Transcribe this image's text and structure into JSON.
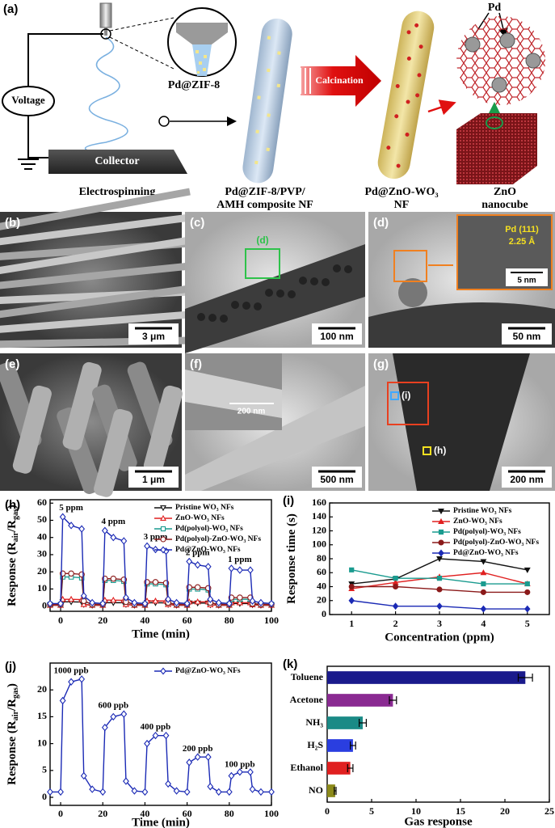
{
  "panel_a": {
    "label": "(a)",
    "voltage": "Voltage",
    "zif_label": "Pd@ZIF-8",
    "collector": "Collector",
    "calcination": "Calcination",
    "pd": "Pd",
    "captions": [
      [
        "Electrospinning"
      ],
      [
        "Pd@ZIF-8/PVP/",
        "AMH composite NF"
      ],
      [
        "Pd@ZnO-WO₃",
        "NF"
      ],
      [
        "ZnO",
        "nanocube"
      ]
    ]
  },
  "micrographs": [
    {
      "label": "(b)",
      "scale": "3 μm"
    },
    {
      "label": "(c)",
      "scale": "100 nm",
      "marker": "(d)"
    },
    {
      "label": "(d)",
      "scale": "50 nm",
      "inset_text": [
        "Pd (111)",
        "2.25 Å"
      ],
      "inset_scale": "5 nm"
    },
    {
      "label": "(e)",
      "scale": "1 μm"
    },
    {
      "label": "(f)",
      "scale": "500 nm",
      "inset_scale": "200 nm"
    },
    {
      "label": "(g)",
      "scale": "200 nm",
      "markers": [
        "(i)",
        "(h)"
      ]
    }
  ],
  "chart_data": [
    {
      "type": "line",
      "panel": "(h)",
      "x_label": "Time (min)",
      "y_label": [
        "Response (R",
        "air",
        "/R",
        "gas",
        ")"
      ],
      "x": [
        -5,
        0,
        1,
        5,
        10,
        11,
        15,
        20,
        21,
        25,
        30,
        31,
        35,
        40,
        41,
        45,
        50,
        51,
        55,
        60,
        61,
        65,
        70,
        71,
        75,
        80,
        81,
        85,
        90,
        91,
        95,
        100
      ],
      "xlim": [
        -5,
        100
      ],
      "xticks": [
        0,
        20,
        40,
        60,
        80,
        100
      ],
      "ylim": [
        -3,
        62
      ],
      "yticks": [
        0,
        10,
        20,
        30,
        40,
        50,
        60
      ],
      "open_markers": true,
      "legend": "upper right",
      "series": [
        {
          "name": "Pristine WO₃ NFs",
          "color": "#111111",
          "marker": "triangle-down",
          "values": [
            0.5,
            0.5,
            2.5,
            2.5,
            2.4,
            1,
            0.5,
            0.5,
            2,
            2,
            2,
            1,
            0.5,
            0.5,
            2,
            2,
            1.9,
            1,
            0.5,
            0.5,
            1.8,
            1.8,
            1.7,
            0.8,
            0.5,
            0.5,
            1.5,
            1.5,
            1.5,
            0.8,
            0.5,
            0.5
          ]
        },
        {
          "name": "ZnO-WO₃ NFs",
          "color": "#e02020",
          "marker": "triangle-up",
          "values": [
            0.5,
            0.5,
            4,
            4,
            3.8,
            1,
            0.5,
            0.5,
            3.5,
            3.5,
            3.4,
            1,
            0.5,
            0.5,
            3,
            3,
            3,
            1,
            0.5,
            0.5,
            2.5,
            2.5,
            2.5,
            0.8,
            0.5,
            0.5,
            2,
            2,
            2,
            0.8,
            0.5,
            0.5
          ]
        },
        {
          "name": "Pd(polyol)-WO₃ NFs",
          "color": "#1a9b8f",
          "marker": "square",
          "values": [
            1,
            1,
            17,
            17,
            16.5,
            3,
            1,
            1,
            15,
            15,
            14.5,
            2.5,
            1,
            1,
            13,
            13,
            12.5,
            2,
            1,
            1,
            10,
            10,
            9.5,
            2,
            1,
            1,
            4,
            4,
            4,
            1.5,
            1,
            1
          ]
        },
        {
          "name": "Pd(polyol)-ZnO-WO₃ NFs",
          "color": "#8b1a1a",
          "marker": "circle",
          "values": [
            1,
            1,
            19,
            19,
            18.5,
            3,
            1,
            1,
            16,
            16,
            15.5,
            2.5,
            1,
            1,
            14,
            14,
            13.5,
            2,
            1,
            1,
            11,
            11,
            10.5,
            2,
            1,
            1,
            5,
            5,
            5,
            1.5,
            1,
            1
          ]
        },
        {
          "name": "Pd@ZnO-WO₃ NFs",
          "color": "#1b2ab5",
          "marker": "diamond",
          "values": [
            1.5,
            1.5,
            52,
            47,
            45,
            6,
            2,
            1.5,
            44,
            40,
            38,
            5,
            2,
            1.5,
            35,
            33,
            32,
            4,
            2,
            1.5,
            26,
            24,
            23,
            4,
            2,
            1.5,
            22,
            21,
            21,
            3,
            2,
            1.5
          ]
        }
      ],
      "annotations": [
        {
          "text": "5 ppm",
          "x": 5,
          "y": 57
        },
        {
          "text": "4 ppm",
          "x": 25,
          "y": 49
        },
        {
          "text": "3 ppm",
          "x": 45,
          "y": 40
        },
        {
          "text": "2 ppm",
          "x": 65,
          "y": 31
        },
        {
          "text": "1 ppm",
          "x": 85,
          "y": 27
        }
      ]
    },
    {
      "type": "line",
      "panel": "(i)",
      "x_label": "Concentration (ppm)",
      "y_label": [
        "Response time (s)"
      ],
      "x": [
        1,
        2,
        3,
        4,
        5
      ],
      "xlim": [
        0.5,
        5.5
      ],
      "xticks": [
        1,
        2,
        3,
        4,
        5
      ],
      "ylim": [
        0,
        160
      ],
      "yticks": [
        0,
        20,
        40,
        60,
        80,
        100,
        120,
        140,
        160
      ],
      "open_markers": false,
      "legend": "upper right",
      "series": [
        {
          "name": "Pristine WO₃ NFs",
          "color": "#111111",
          "marker": "triangle-down",
          "values": [
            44,
            51,
            80,
            76,
            64
          ]
        },
        {
          "name": "ZnO-WO₃ NFs",
          "color": "#e02020",
          "marker": "triangle-up",
          "values": [
            37,
            46,
            54,
            60,
            44
          ]
        },
        {
          "name": "Pd(polyol)-WO₃ NFs",
          "color": "#1a9b8f",
          "marker": "square",
          "values": [
            64,
            52,
            52,
            44,
            44
          ]
        },
        {
          "name": "Pd(polyol)-ZnO-WO₃ NFs",
          "color": "#8b1a1a",
          "marker": "circle",
          "values": [
            40,
            40,
            36,
            32,
            32
          ]
        },
        {
          "name": "Pd@ZnO-WO₃ NFs",
          "color": "#1b2ab5",
          "marker": "diamond",
          "values": [
            20,
            12,
            12,
            8,
            8
          ]
        }
      ]
    },
    {
      "type": "line",
      "panel": "(j)",
      "x_label": "Time (min)",
      "y_label": [
        "Response (R",
        "air",
        "/R",
        "gas",
        ")"
      ],
      "x": [
        -5,
        0,
        1,
        5,
        10,
        11,
        15,
        20,
        21,
        25,
        30,
        31,
        35,
        40,
        41,
        45,
        50,
        51,
        55,
        60,
        61,
        65,
        70,
        71,
        75,
        80,
        81,
        85,
        90,
        91,
        95,
        100
      ],
      "xlim": [
        -5,
        100
      ],
      "xticks": [
        0,
        20,
        40,
        60,
        80,
        100
      ],
      "ylim": [
        -1.5,
        25
      ],
      "yticks": [
        0,
        5,
        10,
        15,
        20
      ],
      "open_markers": true,
      "legend": "upper right",
      "series": [
        {
          "name": "Pd@ZnO-WO₃ NFs",
          "color": "#1b2ab5",
          "marker": "diamond",
          "values": [
            1,
            1,
            18,
            21.5,
            22,
            4,
            1.5,
            1,
            13,
            15,
            15.5,
            3,
            1.2,
            1,
            10,
            11.5,
            11.5,
            2.5,
            1.2,
            1,
            6.5,
            7.5,
            7.5,
            2,
            1,
            1,
            4,
            4.7,
            4.7,
            1.5,
            1,
            1
          ]
        }
      ],
      "annotations": [
        {
          "text": "1000 ppb",
          "x": 5,
          "y": 23.5
        },
        {
          "text": "600 ppb",
          "x": 25,
          "y": 17
        },
        {
          "text": "400 ppb",
          "x": 45,
          "y": 13
        },
        {
          "text": "200 ppb",
          "x": 65,
          "y": 9
        },
        {
          "text": "100 ppb",
          "x": 85,
          "y": 6
        }
      ]
    },
    {
      "type": "barh",
      "panel": "(k)",
      "x_label": "Gas response",
      "categories": [
        "Toluene",
        "Acetone",
        "NH₃",
        "H₂S",
        "Ethanol",
        "NO"
      ],
      "values": [
        22.3,
        7.4,
        4.0,
        2.9,
        2.6,
        0.9
      ],
      "errors": [
        0.8,
        0.4,
        0.4,
        0.3,
        0.3,
        0.1
      ],
      "colors": [
        "#1a1a8c",
        "#8a2a92",
        "#1a8a86",
        "#2a3ee0",
        "#e02020",
        "#8c8a1a"
      ],
      "xlim": [
        0,
        25
      ],
      "xticks": [
        0,
        5,
        10,
        15,
        20,
        25
      ]
    }
  ]
}
